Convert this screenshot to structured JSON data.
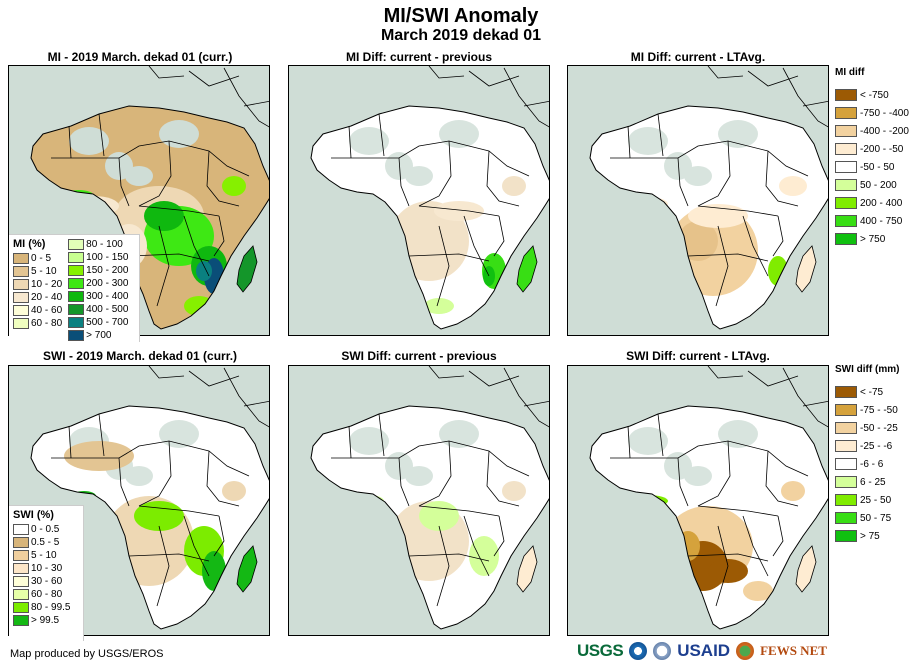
{
  "header": {
    "title": "MI/SWI Anomaly",
    "subtitle": "March 2019 dekad 01"
  },
  "panels": [
    {
      "title": "MI - 2019 March. dekad 01 (curr.)",
      "scheme": "mi"
    },
    {
      "title": "MI Diff: current - previous",
      "scheme": "midiff1"
    },
    {
      "title": "MI Diff: current - LTAvg.",
      "scheme": "midiff2"
    },
    {
      "title": "SWI - 2019 March. dekad 01 (curr.)",
      "scheme": "swi"
    },
    {
      "title": "SWI Diff: current - previous",
      "scheme": "swidiff1"
    },
    {
      "title": "SWI Diff: current - LTAvg.",
      "scheme": "swidiff2"
    }
  ],
  "mi_legend": {
    "title": "MI (%)",
    "items": [
      {
        "label": "0 - 5",
        "color": "#d8b57a"
      },
      {
        "label": "5 - 10",
        "color": "#e3c593"
      },
      {
        "label": "10 - 20",
        "color": "#eed8b4"
      },
      {
        "label": "20 - 40",
        "color": "#f7e8d0"
      },
      {
        "label": "40 - 60",
        "color": "#fefed8"
      },
      {
        "label": "60 - 80",
        "color": "#f0ffc0"
      },
      {
        "label": "80 - 100",
        "color": "#e2ffb8"
      },
      {
        "label": "100 - 150",
        "color": "#c8ff90"
      },
      {
        "label": "150 - 200",
        "color": "#86f000"
      },
      {
        "label": "200 - 300",
        "color": "#3ee814"
      },
      {
        "label": "300 - 400",
        "color": "#0fb80f"
      },
      {
        "label": "400 - 500",
        "color": "#14962a"
      },
      {
        "label": "500 - 700",
        "color": "#0a8080"
      },
      {
        "label": "> 700",
        "color": "#0a4e78"
      }
    ]
  },
  "swi_legend": {
    "title": "SWI (%)",
    "items": [
      {
        "label": "0 - 0.5",
        "color": "#ffffff"
      },
      {
        "label": "0.5 - 5",
        "color": "#d8b57a"
      },
      {
        "label": "5 - 10",
        "color": "#f0cf9e"
      },
      {
        "label": "10 - 30",
        "color": "#fde6c8"
      },
      {
        "label": "30 - 60",
        "color": "#fefed8"
      },
      {
        "label": "60 - 80",
        "color": "#e6ffa8"
      },
      {
        "label": "80 - 99.5",
        "color": "#7cec00"
      },
      {
        "label": "> 99.5",
        "color": "#14b814"
      }
    ]
  },
  "mi_diff_legend": {
    "title": "MI diff",
    "items": [
      {
        "label": "< -750",
        "color": "#9c5a04"
      },
      {
        "label": "-750 - -400",
        "color": "#d5a23c"
      },
      {
        "label": "-400 - -200",
        "color": "#f2d2a0"
      },
      {
        "label": "-200 - -50",
        "color": "#feecd2"
      },
      {
        "label": "-50 - 50",
        "color": "#ffffff"
      },
      {
        "label": "50 - 200",
        "color": "#d4ff9a"
      },
      {
        "label": "200 - 400",
        "color": "#80ec00"
      },
      {
        "label": "400 - 750",
        "color": "#38de14"
      },
      {
        "label": "> 750",
        "color": "#10c010"
      }
    ]
  },
  "swi_diff_legend": {
    "title": "SWI diff (mm)",
    "items": [
      {
        "label": "< -75",
        "color": "#9c5a04"
      },
      {
        "label": "-75 - -50",
        "color": "#d5a23c"
      },
      {
        "label": "-50 - -25",
        "color": "#f2d2a0"
      },
      {
        "label": "-25 - -6",
        "color": "#feecd2"
      },
      {
        "label": "-6 - 6",
        "color": "#ffffff"
      },
      {
        "label": "6 - 25",
        "color": "#d4ff9a"
      },
      {
        "label": "25 - 50",
        "color": "#80ec00"
      },
      {
        "label": "50 - 75",
        "color": "#38de14"
      },
      {
        "label": "> 75",
        "color": "#10c010"
      }
    ]
  },
  "footer": {
    "credit": "Map produced by USGS/EROS",
    "logos": [
      "USGS",
      "NOAA",
      "DOS",
      "USAID",
      "FEWS NET"
    ]
  }
}
